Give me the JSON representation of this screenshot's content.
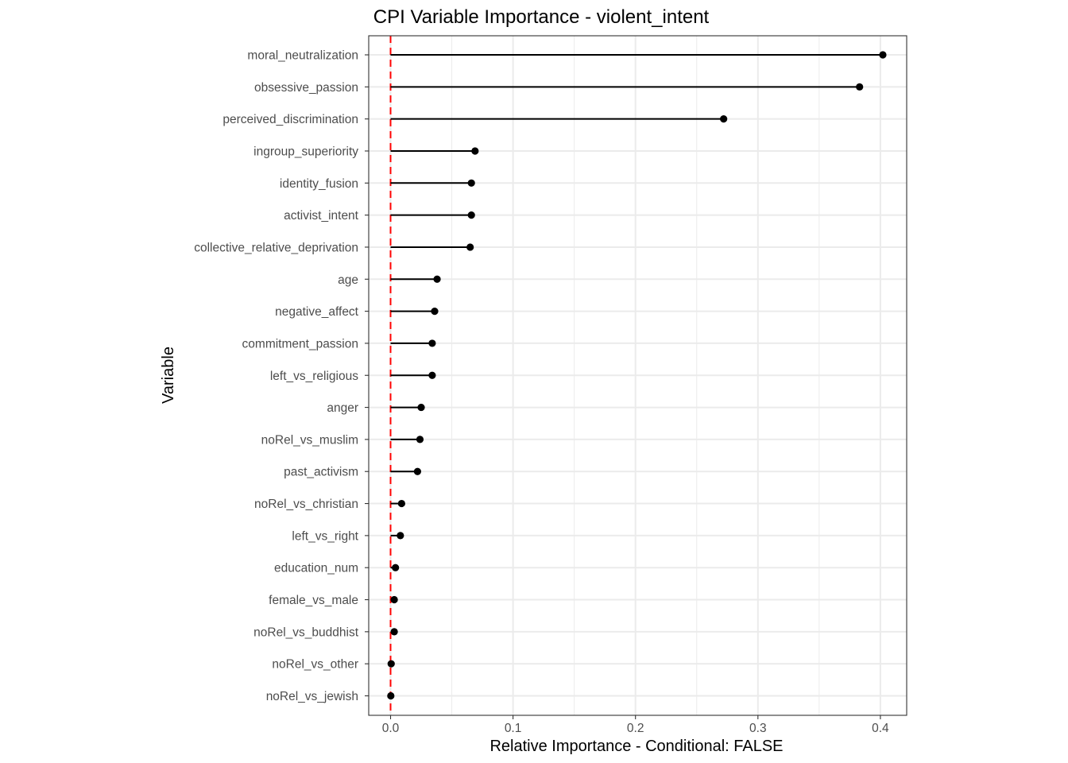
{
  "chart_data": {
    "type": "lollipop",
    "title": "CPI Variable Importance - violent_intent",
    "xlabel": "Relative Importance - Conditional: FALSE",
    "ylabel": "Variable",
    "xlim": [
      -0.018,
      0.42
    ],
    "x_ticks": [
      0.0,
      0.1,
      0.2,
      0.3,
      0.4
    ],
    "x_tick_labels": [
      "0.0",
      "0.1",
      "0.2",
      "0.3",
      "0.4"
    ],
    "grid": true,
    "reference_line": {
      "x": 0,
      "color": "#ff0000",
      "style": "dashed"
    },
    "categories": [
      "moral_neutralization",
      "obsessive_passion",
      "perceived_discrimination",
      "ingroup_superiority",
      "identity_fusion",
      "activist_intent",
      "collective_relative_deprivation",
      "age",
      "negative_affect",
      "commitment_passion",
      "left_vs_religious",
      "anger",
      "noRel_vs_muslim",
      "past_activism",
      "noRel_vs_christian",
      "left_vs_right",
      "education_num",
      "female_vs_male",
      "noRel_vs_buddhist",
      "noRel_vs_other",
      "noRel_vs_jewish"
    ],
    "values": [
      0.402,
      0.383,
      0.272,
      0.069,
      0.066,
      0.066,
      0.065,
      0.038,
      0.036,
      0.034,
      0.034,
      0.025,
      0.024,
      0.022,
      0.009,
      0.008,
      0.004,
      0.003,
      0.003,
      0.0005,
      0.0002
    ],
    "colors": {
      "point": "#000000",
      "segment": "#000000",
      "reference": "#ff0000",
      "grid": "#ebebeb",
      "panel_border": "#333333"
    }
  }
}
